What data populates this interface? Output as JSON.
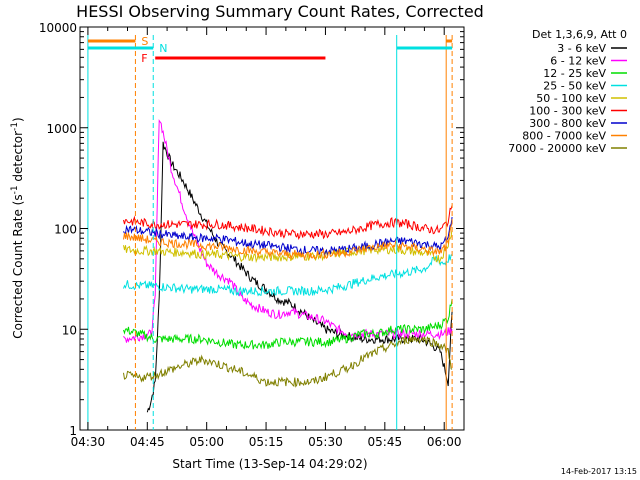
{
  "chart_data": {
    "type": "line",
    "title": "HESSI Observing Summary Count Rates, Corrected",
    "xlabel": "Start Time (13-Sep-14 04:29:02)",
    "ylabel_main": "Corrected Count Rate (s",
    "ylabel_sup": "-1",
    "ylabel_mid": " detector",
    "ylabel_end": ")",
    "date_stamp": "14-Feb-2017 13:15",
    "y_scale": "log",
    "ylim": [
      1,
      10000
    ],
    "xlim_minutes": [
      0,
      67
    ],
    "x_ticks": [
      {
        "min": 1,
        "label": "04:30"
      },
      {
        "min": 16,
        "label": "04:45"
      },
      {
        "min": 31,
        "label": "05:00"
      },
      {
        "min": 46,
        "label": "05:15"
      },
      {
        "min": 61,
        "label": "05:30"
      },
      {
        "min": 76,
        "label": "05:45"
      },
      {
        "min": 91,
        "label": "06:00"
      }
    ],
    "y_ticks": [
      {
        "value": 1,
        "label": "1"
      },
      {
        "value": 10,
        "label": "10"
      },
      {
        "value": 100,
        "label": "100"
      },
      {
        "value": 1000,
        "label": "1000"
      },
      {
        "value": 10000,
        "label": "10000"
      }
    ],
    "legend_header": "Det 1,3,6,9, Att 0",
    "series": [
      {
        "name": "3 - 6 keV",
        "color": "#000000",
        "x": [
          16,
          17,
          18,
          19,
          20,
          22,
          25,
          28,
          31,
          34,
          37,
          40,
          43,
          46,
          49,
          52,
          55,
          58,
          61,
          64,
          67,
          70,
          73,
          76,
          79,
          82,
          85,
          88,
          90,
          92,
          93
        ],
        "y": [
          1.5,
          2,
          3,
          20,
          700,
          450,
          300,
          180,
          110,
          70,
          55,
          40,
          30,
          25,
          20,
          18,
          15,
          12,
          10,
          9,
          8.5,
          8,
          8,
          8,
          8,
          8,
          8,
          7,
          6,
          3,
          15
        ]
      },
      {
        "name": "6 - 12 keV",
        "color": "#ff00ff",
        "x": [
          10,
          14,
          17,
          18,
          19,
          20,
          22,
          25,
          28,
          31,
          34,
          37,
          40,
          43,
          46,
          49,
          52,
          55,
          58,
          61,
          64,
          67,
          70,
          73,
          76,
          79,
          82,
          85,
          88,
          91,
          93
        ],
        "y": [
          8,
          8.5,
          9,
          20,
          1300,
          900,
          400,
          170,
          80,
          45,
          35,
          30,
          20,
          17,
          15,
          14,
          15,
          14,
          13,
          12,
          10,
          9,
          9,
          9,
          9,
          9,
          9,
          9,
          9,
          9,
          10
        ]
      },
      {
        "name": "12 - 25 keV",
        "color": "#00dd00",
        "x": [
          10,
          14,
          18,
          22,
          26,
          30,
          34,
          38,
          42,
          46,
          50,
          54,
          58,
          62,
          66,
          70,
          74,
          78,
          82,
          86,
          90,
          92,
          93
        ],
        "y": [
          10,
          9,
          8,
          8,
          8,
          8,
          7.5,
          7,
          7,
          7,
          7.5,
          7.5,
          7.5,
          7.5,
          8,
          9,
          9,
          10,
          10,
          10,
          11,
          13,
          20
        ]
      },
      {
        "name": "25 - 50 keV",
        "color": "#00e0e0",
        "x": [
          10,
          14,
          18,
          22,
          26,
          30,
          34,
          38,
          42,
          46,
          50,
          54,
          58,
          62,
          66,
          70,
          74,
          78,
          82,
          86,
          89,
          91,
          93
        ],
        "y": [
          28,
          27,
          27,
          26,
          25,
          25,
          25,
          24,
          24,
          24,
          24,
          24,
          24,
          25,
          27,
          30,
          33,
          35,
          37,
          40,
          50,
          45,
          55
        ]
      },
      {
        "name": "50 - 100 keV",
        "color": "#d0c000",
        "x": [
          10,
          14,
          18,
          22,
          26,
          30,
          34,
          38,
          42,
          46,
          50,
          54,
          58,
          62,
          66,
          70,
          74,
          78,
          82,
          86,
          90,
          92,
          93
        ],
        "y": [
          62,
          60,
          60,
          58,
          58,
          55,
          55,
          53,
          52,
          52,
          52,
          53,
          53,
          55,
          58,
          60,
          62,
          62,
          60,
          57,
          50,
          70,
          100
        ]
      },
      {
        "name": "100 - 300 keV",
        "color": "#ff0000",
        "x": [
          10,
          14,
          18,
          22,
          26,
          30,
          34,
          38,
          42,
          46,
          50,
          54,
          58,
          62,
          66,
          70,
          74,
          78,
          82,
          86,
          90,
          92,
          93
        ],
        "y": [
          120,
          115,
          110,
          110,
          110,
          110,
          110,
          105,
          100,
          95,
          90,
          88,
          88,
          88,
          92,
          100,
          110,
          115,
          110,
          100,
          95,
          120,
          170
        ]
      },
      {
        "name": "300 - 800 keV",
        "color": "#0000cc",
        "x": [
          10,
          14,
          18,
          22,
          26,
          30,
          34,
          38,
          42,
          46,
          50,
          54,
          58,
          62,
          66,
          70,
          74,
          78,
          82,
          86,
          90,
          92,
          93
        ],
        "y": [
          100,
          95,
          90,
          85,
          82,
          80,
          80,
          75,
          70,
          68,
          65,
          62,
          60,
          60,
          62,
          65,
          70,
          75,
          75,
          70,
          65,
          80,
          130
        ]
      },
      {
        "name": "800 - 7000 keV",
        "color": "#ff8000",
        "x": [
          10,
          14,
          18,
          22,
          26,
          30,
          34,
          38,
          42,
          46,
          50,
          54,
          58,
          62,
          66,
          70,
          74,
          78,
          82,
          86,
          90,
          92,
          93
        ],
        "y": [
          85,
          80,
          75,
          72,
          70,
          68,
          66,
          63,
          60,
          58,
          56,
          55,
          55,
          56,
          58,
          62,
          66,
          68,
          66,
          62,
          58,
          70,
          110
        ]
      },
      {
        "name": "7000 - 20000 keV",
        "color": "#808000",
        "x": [
          10,
          14,
          18,
          22,
          26,
          30,
          34,
          38,
          42,
          46,
          50,
          54,
          58,
          62,
          66,
          70,
          74,
          78,
          82,
          86,
          90,
          92,
          93
        ],
        "y": [
          3.5,
          3.3,
          3.5,
          4,
          4.5,
          5,
          4.5,
          4,
          3.5,
          3,
          3,
          3,
          3,
          3.5,
          4,
          5,
          6,
          7,
          8,
          8,
          7,
          6,
          4
        ]
      }
    ],
    "flags": [
      {
        "label": "S",
        "color": "#ff8000",
        "row": "upper",
        "start_min": 1,
        "end_min": 13,
        "label_min": 13
      },
      {
        "label": "N",
        "color": "#00e0e0",
        "row": "mid",
        "start_min": 1,
        "end_min": 17.5,
        "label_min": 17.5
      },
      {
        "label": "N",
        "color": "#00e0e0",
        "row": "mid",
        "start_min": 79,
        "end_min": 93,
        "label_min": null
      },
      {
        "label": "F",
        "color": "#ff0000",
        "row": "lower",
        "start_min": 18,
        "end_min": 61,
        "label_min": 18
      },
      {
        "label": "",
        "color": "#ff8000",
        "row": "upper",
        "start_min": 91.5,
        "end_min": 93,
        "label_min": null
      }
    ],
    "vlines": [
      {
        "min": 1,
        "color": "#00e0e0",
        "style": "solid"
      },
      {
        "min": 13,
        "color": "#ff8000",
        "style": "dashed"
      },
      {
        "min": 17.5,
        "color": "#00e0e0",
        "style": "dashed"
      },
      {
        "min": 79,
        "color": "#00e0e0",
        "style": "solid"
      },
      {
        "min": 91.5,
        "color": "#ff8000",
        "style": "solid"
      },
      {
        "min": 93,
        "color": "#ff8000",
        "style": "dashed"
      }
    ]
  }
}
